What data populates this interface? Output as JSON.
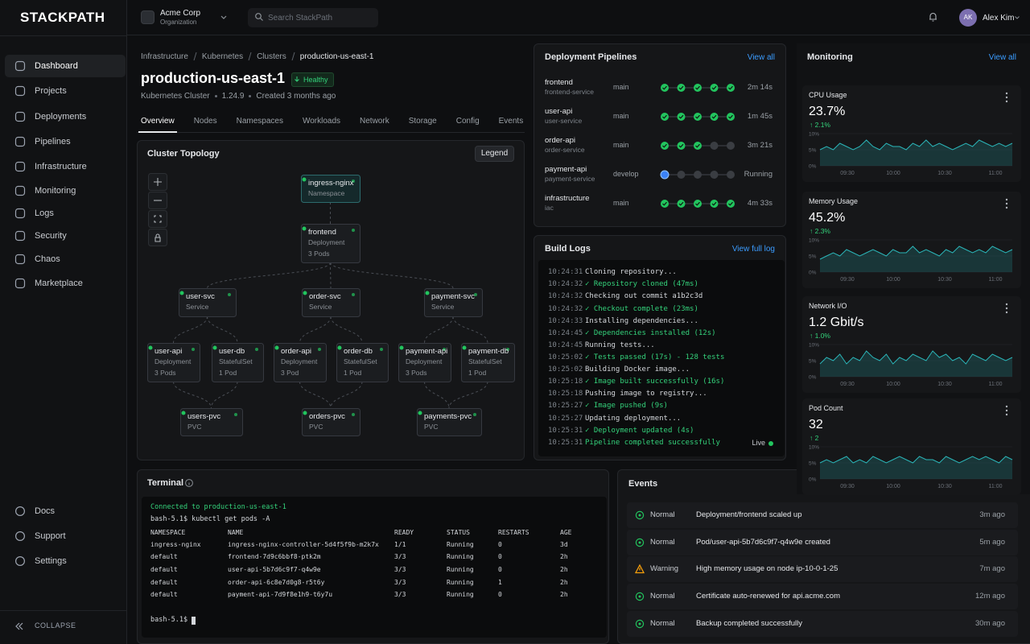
{
  "sidebar": {
    "logo": "STACKPATH",
    "nav": [
      "Dashboard",
      "Projects",
      "Deployments",
      "Pipelines",
      "Infrastructure",
      "Monitoring",
      "Logs",
      "Security",
      "Chaos",
      "Marketplace"
    ],
    "active": "Dashboard",
    "footer": [
      "Docs",
      "Support",
      "Settings"
    ],
    "collapse": "COLLAPSE"
  },
  "topbar": {
    "org": "Acme Corp",
    "org_type": "Organization",
    "search": "Search StackPath",
    "user_initials": "AK",
    "user": "Alex Kim"
  },
  "header": {
    "breadcrumb": [
      "Infrastructure",
      "Kubernetes",
      "Clusters",
      "production-us-east-1"
    ],
    "title": "production-us-east-1",
    "status": "Healthy",
    "meta": [
      "Kubernetes Cluster",
      "1.24.9",
      "Created 3 months ago"
    ],
    "tabs": [
      "Overview",
      "Nodes",
      "Namespaces",
      "Workloads",
      "Network",
      "Storage",
      "Config",
      "Events"
    ],
    "active_tab": "Overview"
  },
  "topology": {
    "title": "Cluster Topology",
    "legend": "Legend",
    "nodes": [
      {
        "label": "ingress-nginx",
        "kind": "Namespace"
      },
      {
        "label": "frontend",
        "kind": "Deployment",
        "pods": "3 Pods"
      },
      {
        "label": "user-svc",
        "kind": "Service"
      },
      {
        "label": "order-svc",
        "kind": "Service"
      },
      {
        "label": "payment-svc",
        "kind": "Service"
      },
      {
        "label": "user-api",
        "kind": "Deployment",
        "pods": "3 Pods"
      },
      {
        "label": "user-db",
        "kind": "StatefulSet",
        "pods": "1 Pod"
      },
      {
        "label": "order-api",
        "kind": "Deployment",
        "pods": "3 Pod"
      },
      {
        "label": "order-db",
        "kind": "StatefulSet",
        "pods": "1 Pod"
      },
      {
        "label": "payment-api",
        "kind": "Deployment",
        "pods": "3 Pods"
      },
      {
        "label": "payment-db",
        "kind": "StatefulSet",
        "pods": "1 Pod"
      },
      {
        "label": "users-pvc",
        "kind": "PVC"
      },
      {
        "label": "orders-pvc",
        "kind": "PVC"
      },
      {
        "label": "payments-pvc",
        "kind": "PVC"
      }
    ]
  },
  "pipelines": {
    "title": "Deployment Pipelines",
    "view_all": "View all",
    "rows": [
      {
        "name": "frontend",
        "service": "frontend-service",
        "branch": "main",
        "stages": [
          "success",
          "success",
          "success",
          "success",
          "success"
        ],
        "duration": "2m 14s"
      },
      {
        "name": "user-api",
        "service": "user-service",
        "branch": "main",
        "stages": [
          "success",
          "success",
          "success",
          "success",
          "success"
        ],
        "duration": "1m 45s"
      },
      {
        "name": "order-api",
        "service": "order-service",
        "branch": "main",
        "stages": [
          "success",
          "success",
          "success",
          "pending",
          "pending"
        ],
        "duration": "3m 21s"
      },
      {
        "name": "payment-api",
        "service": "payment-service",
        "branch": "develop",
        "stages": [
          "running",
          "pending",
          "pending",
          "pending",
          "pending"
        ],
        "duration": "Running"
      },
      {
        "name": "infrastructure",
        "service": "iac",
        "branch": "main",
        "stages": [
          "success",
          "success",
          "success",
          "success",
          "success"
        ],
        "duration": "4m 33s"
      }
    ]
  },
  "build_logs": {
    "title": "Build Logs",
    "link": "View full log",
    "live": "Live",
    "lines": [
      {
        "time": "10:24:31",
        "text": "Cloning repository...",
        "status": "info"
      },
      {
        "time": "10:24:32",
        "text": "✓ Repository cloned (47ms)",
        "status": "success"
      },
      {
        "time": "10:24:32",
        "text": "Checking out commit a1b2c3d",
        "status": "info"
      },
      {
        "time": "10:24:32",
        "text": "✓ Checkout complete (23ms)",
        "status": "success"
      },
      {
        "time": "10:24:33",
        "text": "Installing dependencies...",
        "status": "info"
      },
      {
        "time": "10:24:45",
        "text": "✓ Dependencies installed (12s)",
        "status": "success"
      },
      {
        "time": "10:24:45",
        "text": "Running tests...",
        "status": "info"
      },
      {
        "time": "10:25:02",
        "text": "✓ Tests passed (17s) - 128 tests",
        "status": "success"
      },
      {
        "time": "10:25:02",
        "text": "Building Docker image...",
        "status": "info"
      },
      {
        "time": "10:25:18",
        "text": "✓ Image built successfully (16s)",
        "status": "success"
      },
      {
        "time": "10:25:18",
        "text": "Pushing image to registry...",
        "status": "info"
      },
      {
        "time": "10:25:27",
        "text": "✓ Image pushed (9s)",
        "status": "success"
      },
      {
        "time": "10:25:27",
        "text": "Updating deployment...",
        "status": "info"
      },
      {
        "time": "10:25:31",
        "text": "✓ Deployment updated (4s)",
        "status": "success"
      },
      {
        "time": "10:25:31",
        "text": "Pipeline completed successfully",
        "status": "done"
      }
    ]
  },
  "monitoring": {
    "title": "Monitoring",
    "view_all": "View all",
    "cards": [
      {
        "title": "CPU Usage",
        "value": "23.7%",
        "change": "↑ 2.1%",
        "ylim": [
          0,
          10
        ],
        "yticks": [
          {
            "value": 0,
            "label": "0%"
          },
          {
            "value": 5,
            "label": "5%"
          },
          {
            "value": 10,
            "label": "10%"
          }
        ],
        "xticks": [
          "09:30",
          "10:00",
          "10:30",
          "11:00"
        ],
        "values": [
          5,
          6,
          5,
          7,
          6,
          5,
          6,
          8,
          6,
          5,
          7,
          6,
          6,
          5,
          7,
          6,
          8,
          6,
          7,
          6,
          5,
          6,
          7,
          6,
          8,
          7,
          6,
          7,
          6,
          7
        ]
      },
      {
        "title": "Memory Usage",
        "value": "45.2%",
        "change": "↑ 2.3%",
        "ylim": [
          0,
          10
        ],
        "yticks": [
          {
            "value": 0,
            "label": "0%"
          },
          {
            "value": 5,
            "label": "5%"
          },
          {
            "value": 10,
            "label": "10%"
          }
        ],
        "xticks": [
          "09:30",
          "10:00",
          "10:30",
          "11:00"
        ],
        "values": [
          4,
          5,
          6,
          5,
          7,
          6,
          5,
          6,
          7,
          6,
          5,
          7,
          6,
          6,
          8,
          6,
          7,
          6,
          5,
          7,
          6,
          8,
          7,
          6,
          7,
          6,
          8,
          7,
          6,
          7
        ]
      },
      {
        "title": "Network I/O",
        "value": "1.2 Gbit/s",
        "change": "↑ 1.0%",
        "ylim": [
          0,
          10
        ],
        "yticks": [
          {
            "value": 0,
            "label": "0%"
          },
          {
            "value": 5,
            "label": "5%"
          },
          {
            "value": 10,
            "label": "10%"
          }
        ],
        "xticks": [
          "09:30",
          "10:00",
          "10:30",
          "11:00"
        ],
        "values": [
          4,
          6,
          5,
          7,
          4,
          6,
          5,
          8,
          6,
          5,
          7,
          4,
          6,
          5,
          7,
          6,
          5,
          8,
          6,
          7,
          5,
          6,
          4,
          7,
          6,
          5,
          7,
          6,
          5,
          6
        ]
      },
      {
        "title": "Pod Count",
        "value": "32",
        "change": "↑ 2",
        "ylim": [
          0,
          10
        ],
        "yticks": [
          {
            "value": 0,
            "label": "0%"
          },
          {
            "value": 5,
            "label": "5%"
          },
          {
            "value": 10,
            "label": "10%"
          }
        ],
        "xticks": [
          "09:30",
          "10:00",
          "10:30",
          "11:00"
        ],
        "values": [
          5,
          6,
          5,
          6,
          7,
          5,
          6,
          5,
          7,
          6,
          5,
          6,
          7,
          6,
          5,
          7,
          6,
          6,
          5,
          7,
          6,
          5,
          6,
          7,
          6,
          7,
          6,
          5,
          7,
          6
        ]
      }
    ]
  },
  "terminal": {
    "title": "Terminal",
    "connected": "Connected to production-us-east-1",
    "command": "bash-5.1$ kubectl get pods -A",
    "columns": [
      "NAMESPACE",
      "NAME",
      "READY",
      "STATUS",
      "RESTARTS",
      "AGE"
    ],
    "rows": [
      [
        "ingress-nginx",
        "ingress-nginx-controller-5d4f5f9b-m2k7x",
        "1/1",
        "Running",
        "0",
        "3d"
      ],
      [
        "default",
        "frontend-7d9c6bbf8-ptk2m",
        "3/3",
        "Running",
        "0",
        "2h"
      ],
      [
        "default",
        "user-api-5b7d6c9f7-q4w9e",
        "3/3",
        "Running",
        "0",
        "2h"
      ],
      [
        "default",
        "order-api-6c8e7d0g8-r5t6y",
        "3/3",
        "Running",
        "1",
        "2h"
      ],
      [
        "default",
        "payment-api-7d9f8e1h9-t6y7u",
        "3/3",
        "Running",
        "0",
        "2h"
      ]
    ],
    "prompt": "bash-5.1$"
  },
  "events": {
    "title": "Events",
    "rows": [
      {
        "level": "Normal",
        "message": "Deployment/frontend scaled up",
        "time": "3m ago"
      },
      {
        "level": "Normal",
        "message": "Pod/user-api-5b7d6c9f7-q4w9e created",
        "time": "5m ago"
      },
      {
        "level": "Warning",
        "message": "High memory usage on node ip-10-0-1-25",
        "time": "7m ago"
      },
      {
        "level": "Normal",
        "message": "Certificate auto-renewed for api.acme.com",
        "time": "12m ago"
      },
      {
        "level": "Normal",
        "message": "Backup completed successfully",
        "time": "30m ago"
      }
    ]
  }
}
